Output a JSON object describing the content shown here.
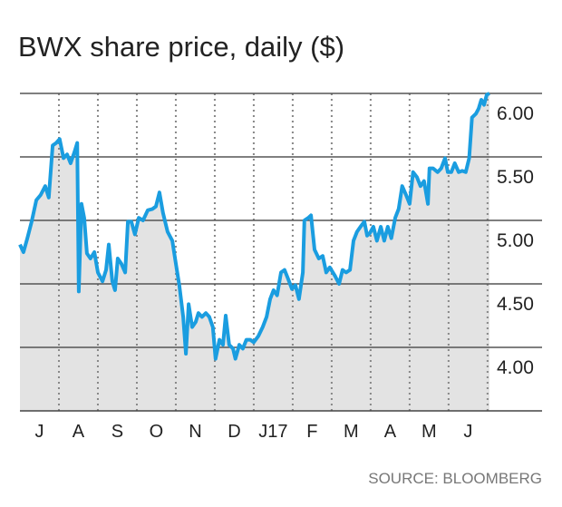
{
  "chart_data": {
    "type": "line",
    "title": "BWX share price, daily ($)",
    "source": "SOURCE: BLOOMBERG",
    "x": [
      0.0,
      0.09,
      0.19,
      0.3,
      0.42,
      0.53,
      0.65,
      0.74,
      0.84,
      0.93,
      1.02,
      1.12,
      1.21,
      1.3,
      1.4,
      1.47,
      1.51,
      1.58,
      1.65,
      1.72,
      1.81,
      1.91,
      2.0,
      2.12,
      2.21,
      2.28,
      2.37,
      2.44,
      2.51,
      2.6,
      2.7,
      2.77,
      2.86,
      2.95,
      3.05,
      3.16,
      3.28,
      3.4,
      3.49,
      3.58,
      3.67,
      3.79,
      3.91,
      4.0,
      4.09,
      4.19,
      4.26,
      4.33,
      4.42,
      4.51,
      4.58,
      4.67,
      4.77,
      4.86,
      4.95,
      5.02,
      5.12,
      5.21,
      5.28,
      5.37,
      5.47,
      5.53,
      5.63,
      5.72,
      5.81,
      5.91,
      6.0,
      6.12,
      6.23,
      6.33,
      6.42,
      6.51,
      6.6,
      6.7,
      6.79,
      6.88,
      6.98,
      7.07,
      7.16,
      7.26,
      7.3,
      7.4,
      7.47,
      7.56,
      7.67,
      7.77,
      7.86,
      7.95,
      8.09,
      8.19,
      8.28,
      8.37,
      8.47,
      8.56,
      8.65,
      8.74,
      8.84,
      8.91,
      8.98,
      9.07,
      9.16,
      9.26,
      9.35,
      9.44,
      9.53,
      9.63,
      9.72,
      9.81,
      9.91,
      10.0,
      10.09,
      10.19,
      10.28,
      10.37,
      10.47,
      10.51,
      10.6,
      10.72,
      10.81,
      10.91,
      10.98,
      11.07,
      11.16,
      11.26,
      11.35,
      11.44,
      11.53,
      11.6,
      11.7,
      11.77,
      11.84,
      11.91,
      11.98,
      12.05
    ],
    "values": [
      4.81,
      4.75,
      4.86,
      4.99,
      5.16,
      5.2,
      5.27,
      5.18,
      5.59,
      5.61,
      5.64,
      5.49,
      5.52,
      5.45,
      5.54,
      5.61,
      4.44,
      5.13,
      5.02,
      4.74,
      4.7,
      4.75,
      4.59,
      4.52,
      4.61,
      4.81,
      4.52,
      4.45,
      4.7,
      4.66,
      4.59,
      4.99,
      4.99,
      4.89,
      5.02,
      5.0,
      5.08,
      5.09,
      5.11,
      5.22,
      5.06,
      4.91,
      4.84,
      4.66,
      4.49,
      4.24,
      3.95,
      4.34,
      4.16,
      4.2,
      4.27,
      4.24,
      4.27,
      4.24,
      4.16,
      3.91,
      4.06,
      4.02,
      4.25,
      4.02,
      3.99,
      3.91,
      4.02,
      3.99,
      4.06,
      4.06,
      4.04,
      4.09,
      4.16,
      4.24,
      4.38,
      4.45,
      4.41,
      4.59,
      4.61,
      4.54,
      4.46,
      4.49,
      4.38,
      4.59,
      5.0,
      5.02,
      5.04,
      4.77,
      4.7,
      4.72,
      4.59,
      4.63,
      4.56,
      4.5,
      4.61,
      4.59,
      4.61,
      4.84,
      4.91,
      4.95,
      4.99,
      4.88,
      4.9,
      4.95,
      4.84,
      4.95,
      4.84,
      4.95,
      4.86,
      5.02,
      5.09,
      5.27,
      5.2,
      5.13,
      5.38,
      5.34,
      5.27,
      5.31,
      5.13,
      5.41,
      5.41,
      5.38,
      5.41,
      5.49,
      5.38,
      5.38,
      5.45,
      5.38,
      5.39,
      5.38,
      5.49,
      5.81,
      5.84,
      5.88,
      5.95,
      5.91,
      5.99,
      6.0
    ],
    "color": "#1a9de0",
    "area_color": "#e3e3e3",
    "xlim": [
      0,
      12.05
    ],
    "xticks": [
      {
        "value": 0.5,
        "label": "J"
      },
      {
        "value": 1.5,
        "label": "A"
      },
      {
        "value": 2.5,
        "label": "S"
      },
      {
        "value": 3.5,
        "label": "O"
      },
      {
        "value": 4.5,
        "label": "N"
      },
      {
        "value": 5.5,
        "label": "D"
      },
      {
        "value": 6.5,
        "label": "J17"
      },
      {
        "value": 7.5,
        "label": "F"
      },
      {
        "value": 8.5,
        "label": "M"
      },
      {
        "value": 9.5,
        "label": "A"
      },
      {
        "value": 10.5,
        "label": "M"
      },
      {
        "value": 11.5,
        "label": "J"
      }
    ],
    "xgrid": [
      1,
      2,
      3,
      4,
      5,
      6,
      7,
      8,
      9,
      10,
      11,
      12
    ],
    "ylim": [
      3.5,
      6.0
    ],
    "yticks": [
      {
        "value": 4,
        "label": "4.00"
      },
      {
        "value": 4.5,
        "label": "4.50"
      },
      {
        "value": 5,
        "label": "5.00"
      },
      {
        "value": 5.5,
        "label": "5.50"
      },
      {
        "value": 6,
        "label": "6.00"
      }
    ],
    "grid": true
  }
}
